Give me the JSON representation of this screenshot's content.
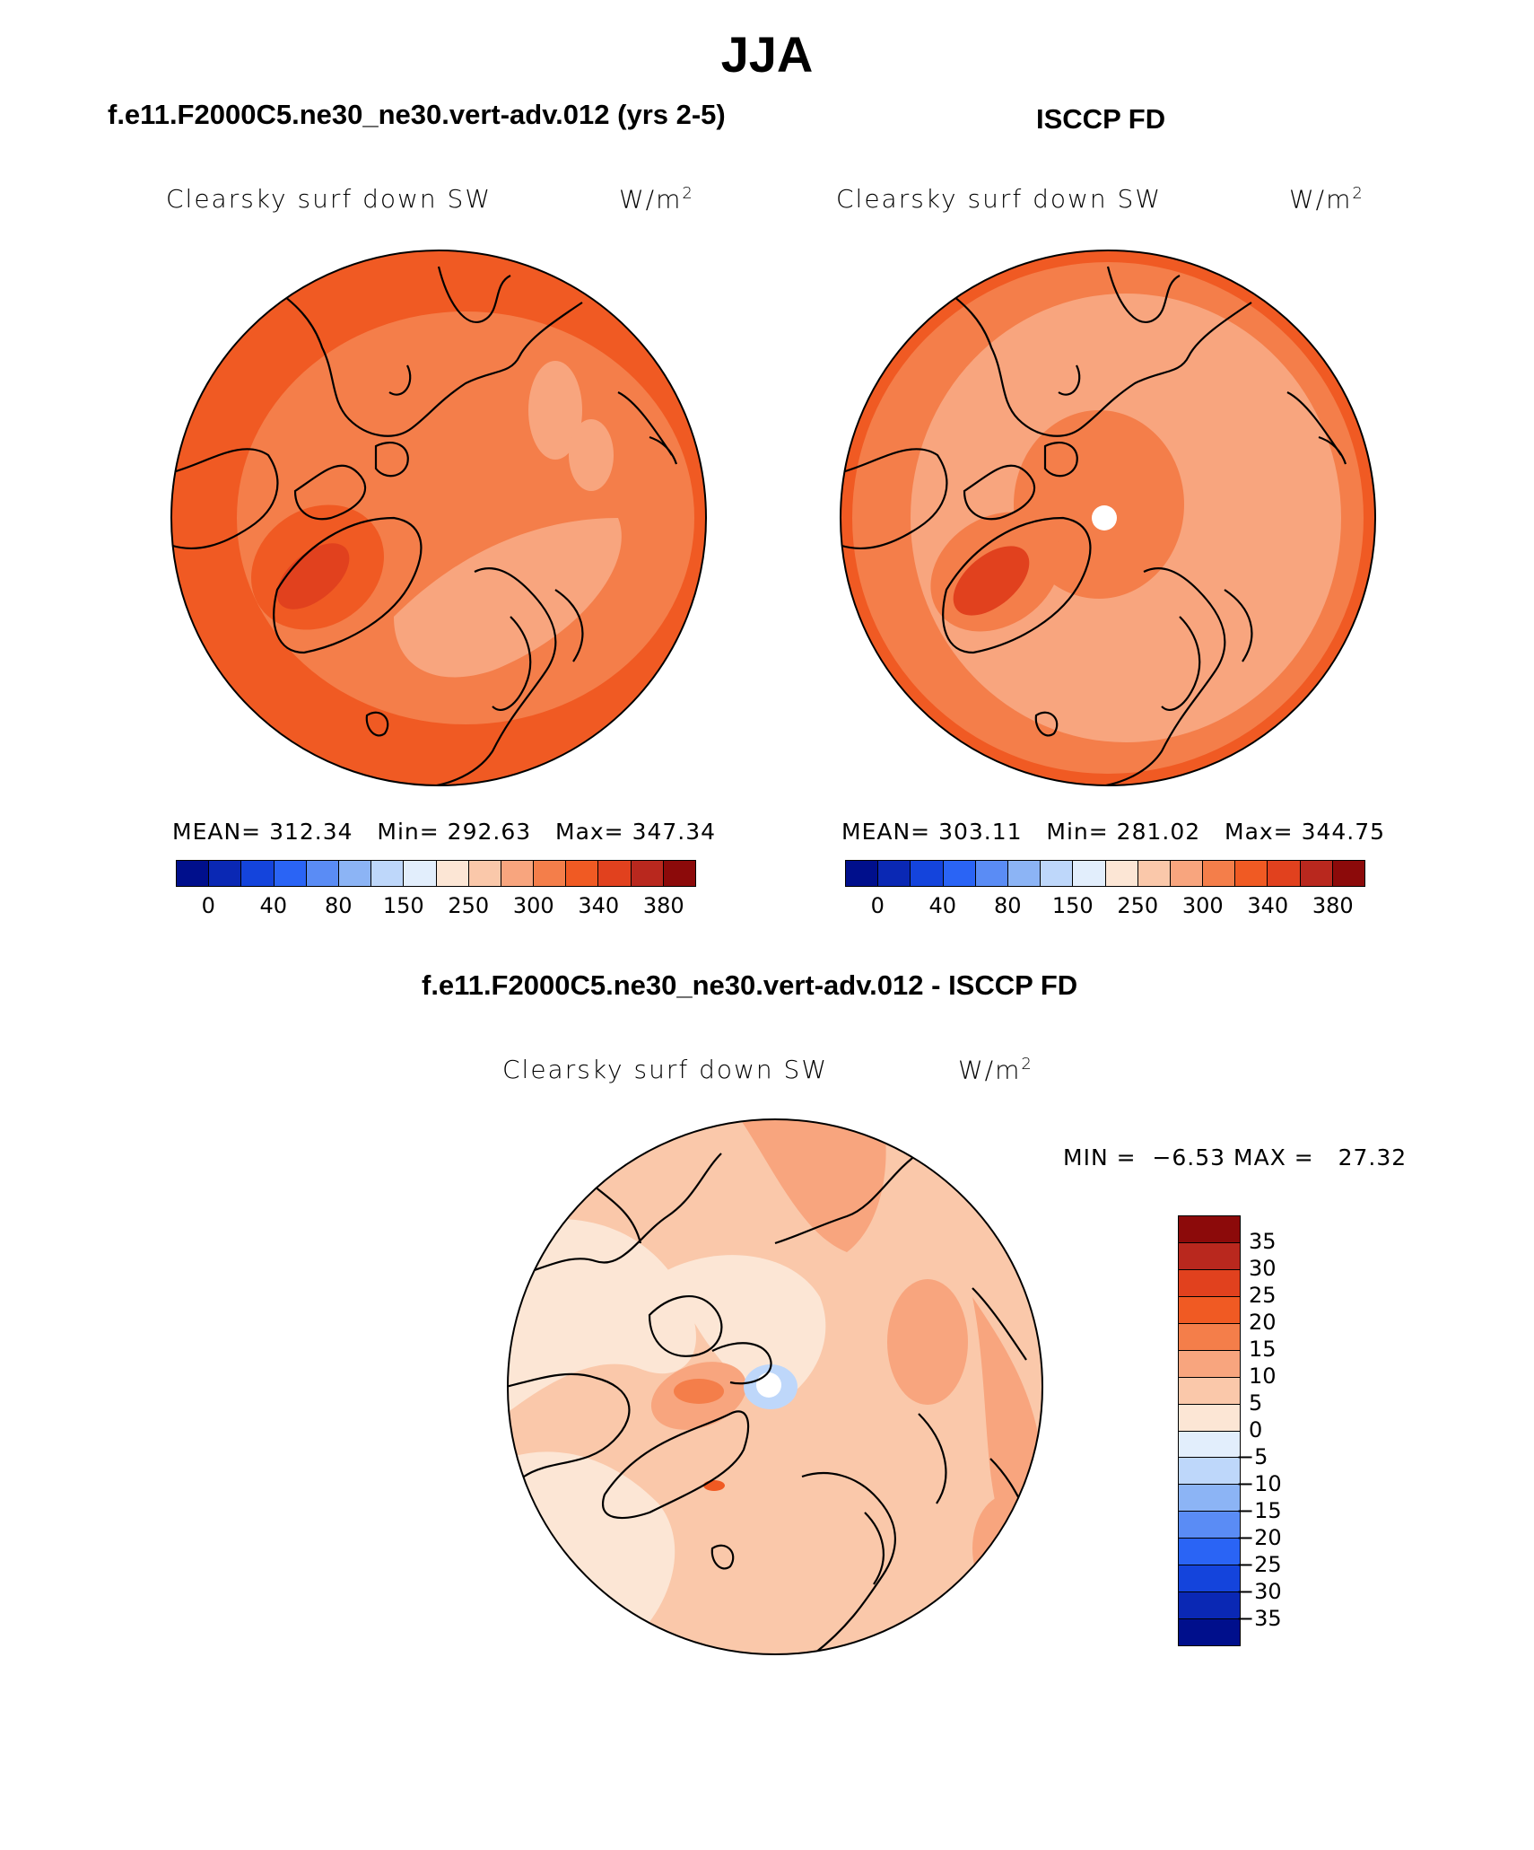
{
  "title": "JJA",
  "panel_left": {
    "case_title": "f.e11.F2000C5.ne30_ne30.vert-adv.012 (yrs 2-5)",
    "variable": "Clearsky surf down SW",
    "units_base": "W/m",
    "units_sup": "2",
    "mean_label": "MEAN=",
    "mean": "312.34",
    "min_label": "Min=",
    "min": "292.63",
    "max_label": "Max=",
    "max": "347.34"
  },
  "panel_right": {
    "case_title": "ISCCP FD",
    "variable": "Clearsky surf down SW",
    "units_base": "W/m",
    "units_sup": "2",
    "mean_label": "MEAN=",
    "mean": "303.11",
    "min_label": "Min=",
    "min": "281.02",
    "max_label": "Max=",
    "max": "344.75"
  },
  "panel_diff": {
    "case_title": "f.e11.F2000C5.ne30_ne30.vert-adv.012 - ISCCP FD",
    "variable": "Clearsky surf down SW",
    "units_base": "W/m",
    "units_sup": "2",
    "min_label": "MIN =",
    "min": "−6.53",
    "max_label": "MAX =",
    "max": "27.32"
  },
  "colorbar_main": {
    "ticks": [
      "0",
      "40",
      "80",
      "150",
      "250",
      "300",
      "340",
      "380"
    ],
    "colors": [
      "#000f8c",
      "#0a28b4",
      "#1444dc",
      "#2a64f5",
      "#5a8cf5",
      "#8cb4f5",
      "#bed7fa",
      "#e2eefc",
      "#fce6d5",
      "#fac8aa",
      "#f8a57e",
      "#f47e4a",
      "#f05a23",
      "#e1411e",
      "#b9281e",
      "#8c0a0a"
    ]
  },
  "colorbar_diff": {
    "ticks": [
      "35",
      "30",
      "25",
      "20",
      "15",
      "10",
      "5",
      "0",
      "−5",
      "−10",
      "−15",
      "−20",
      "−25",
      "−30",
      "−35"
    ],
    "colors": [
      "#8c0a0a",
      "#b9281e",
      "#e1411e",
      "#f05a23",
      "#f47e4a",
      "#f8a57e",
      "#fac8aa",
      "#fce6d5",
      "#e2eefc",
      "#bed7fa",
      "#8cb4f5",
      "#5a8cf5",
      "#2a64f5",
      "#1444dc",
      "#0a28b4",
      "#000f8c"
    ]
  }
}
